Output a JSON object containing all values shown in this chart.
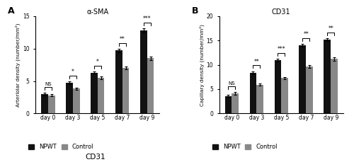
{
  "panel_A": {
    "title": "α-SMA",
    "ylabel": "Arteriolar density (number/mm²)",
    "categories": [
      "day 0",
      "day 3",
      "day 5",
      "day 7",
      "day 9"
    ],
    "NPWT_means": [
      3.0,
      4.7,
      6.3,
      9.7,
      12.8
    ],
    "NPWT_errors": [
      0.2,
      0.2,
      0.2,
      0.25,
      0.3
    ],
    "Control_means": [
      2.8,
      3.8,
      5.5,
      7.0,
      8.5
    ],
    "Control_errors": [
      0.2,
      0.2,
      0.2,
      0.2,
      0.25
    ],
    "ylim": [
      0,
      15
    ],
    "yticks": [
      0,
      5,
      10,
      15
    ],
    "significance": [
      "NS",
      "*",
      "*",
      "**",
      "***"
    ],
    "panel_label": "A"
  },
  "panel_B": {
    "title": "CD31",
    "ylabel": "Capillary density (number/mm²)",
    "categories": [
      "day 0",
      "day 3",
      "day 5",
      "day 7",
      "day 9"
    ],
    "NPWT_means": [
      3.6,
      8.4,
      10.9,
      14.0,
      15.2
    ],
    "NPWT_errors": [
      0.2,
      0.3,
      0.3,
      0.3,
      0.3
    ],
    "Control_means": [
      4.1,
      5.9,
      7.3,
      9.6,
      11.2
    ],
    "Control_errors": [
      0.3,
      0.2,
      0.2,
      0.3,
      0.4
    ],
    "ylim": [
      0,
      20
    ],
    "yticks": [
      0,
      5,
      10,
      15,
      20
    ],
    "significance": [
      "NS",
      "**",
      "***",
      "**",
      "**"
    ],
    "panel_label": "B"
  },
  "bar_width": 0.28,
  "NPWT_color": "#111111",
  "Control_color": "#888888",
  "bottom_label": "CD31",
  "figsize": [
    5.0,
    2.29
  ],
  "dpi": 100
}
